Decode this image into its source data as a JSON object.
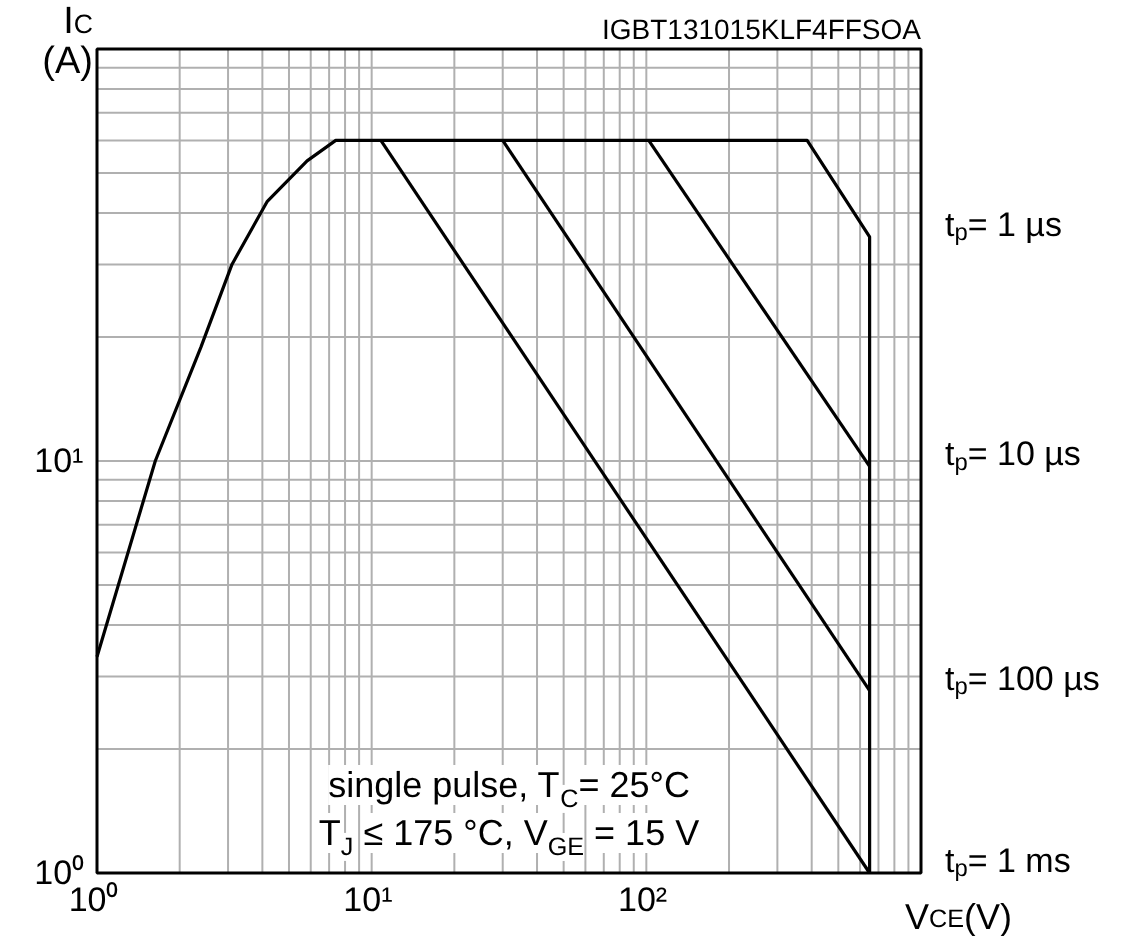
{
  "chart_data": {
    "type": "line",
    "xlabel": "V$_{CE}$(V)",
    "ylabel": "I$_{C}$\n(A)",
    "log": "xy",
    "xlim": [
      1,
      1000
    ],
    "ylim": [
      1,
      100
    ],
    "xticks": [
      {
        "value": 1,
        "label": "10⁰"
      },
      {
        "value": 10,
        "label": "10¹"
      },
      {
        "value": 100,
        "label": "10²"
      },
      {
        "value": 1000,
        "label": null
      }
    ],
    "yticks": [
      {
        "value": 1,
        "label": "10⁰"
      },
      {
        "value": 10,
        "label": "10¹"
      },
      {
        "value": 100,
        "label": null
      }
    ],
    "grid": true,
    "series": [
      {
        "name": "t$_{p}$= 1 µs",
        "color": "#000000",
        "x": [
          1,
          1.63,
          2.39,
          3.1,
          4.17,
          5.82,
          7.4,
          385,
          650,
          650
        ],
        "values": [
          3.35,
          10,
          18.9,
          30,
          42.7,
          53.5,
          60,
          60,
          35,
          1
        ]
      },
      {
        "name": "t$_{p}$= 10 µs",
        "color": "#000000",
        "x": [
          102,
          650
        ],
        "values": [
          60,
          9.7
        ]
      },
      {
        "name": "t$_{p}$= 100 µs",
        "color": "#000000",
        "x": [
          30,
          650
        ],
        "values": [
          60,
          2.77
        ]
      },
      {
        "name": "t$_{p}$= 1 ms",
        "color": "#000000",
        "x": [
          10.8,
          650
        ],
        "values": [
          60,
          1
        ]
      }
    ],
    "annotations": [
      "IGBT131015KLF4FFSOA",
      "single pulse, T$_{C}$= 25°C",
      "T$_{J}$ ≤ 175 °C, V$_{GE}$ = 15 V"
    ]
  }
}
